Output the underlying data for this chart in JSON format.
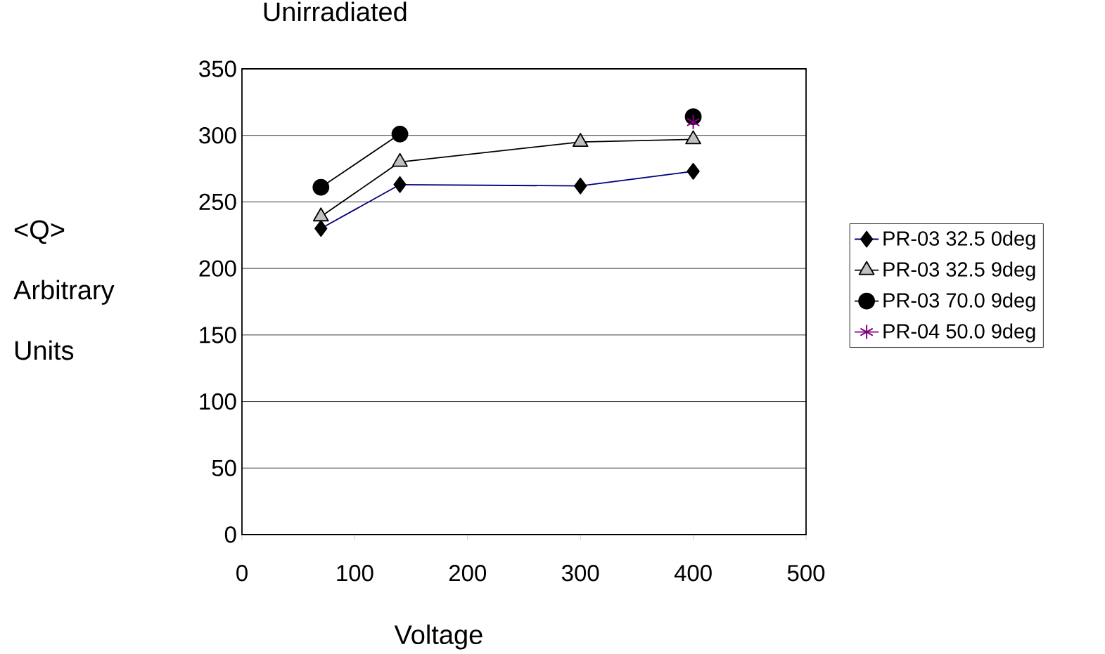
{
  "chart_data": {
    "type": "line",
    "title": "Unirradiated",
    "xlabel": "Voltage",
    "ylabel": "<Q> Arbitrary Units",
    "xlim": [
      0,
      500
    ],
    "xticks": [
      0,
      100,
      200,
      300,
      400,
      500
    ],
    "ylim": [
      0,
      350
    ],
    "yticks": [
      0,
      50,
      100,
      150,
      200,
      250,
      300,
      350
    ],
    "grid": "y",
    "legend": "right",
    "series": [
      {
        "name": "PR-03 32.5 0deg",
        "color": "#000080",
        "marker": "diamond",
        "x": [
          70,
          140,
          300,
          400
        ],
        "values": [
          230,
          263,
          262,
          273
        ]
      },
      {
        "name": "PR-03 32.5 9deg",
        "color": "#000000",
        "marker": "triangle",
        "x": [
          70,
          140,
          300,
          400
        ],
        "values": [
          239,
          280,
          295,
          297
        ]
      },
      {
        "name": "PR-03 70.0 9deg",
        "color": "#000000",
        "marker": "circle",
        "x": [
          70,
          140,
          300,
          400
        ],
        "values": [
          261,
          301,
          null,
          314
        ]
      },
      {
        "name": "PR-04 50.0 9deg",
        "color": "#800080",
        "marker": "cross",
        "x": [
          400
        ],
        "values": [
          310
        ]
      }
    ]
  }
}
